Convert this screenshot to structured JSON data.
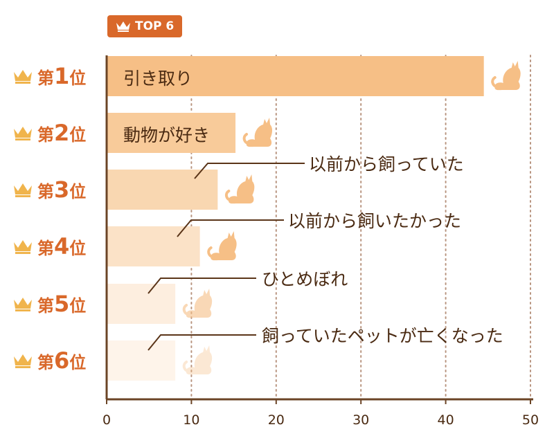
{
  "badge": {
    "label": "TOP 6",
    "color": "#d9682a",
    "icon": "crown-icon"
  },
  "chart_data": {
    "type": "bar",
    "orientation": "horizontal",
    "categories": [
      "引き取り",
      "動物が好き",
      "以前から飼っていた",
      "以前から飼いたかった",
      "ひとめぼれ",
      "飼っていたペットが亡くなった"
    ],
    "values": [
      44.5,
      15.2,
      13.1,
      11.0,
      8.1,
      8.1
    ],
    "xlim": [
      0,
      50
    ],
    "xticks": [
      0,
      10,
      20,
      30,
      40,
      50
    ],
    "grid": "vertical dotted",
    "bar_colors": [
      "#f6bf86",
      "#f8cb9a",
      "#f9d7b1",
      "#fbe2c7",
      "#fdeedf",
      "#fef4ea"
    ],
    "icon": "cat-icon"
  },
  "ranks": [
    {
      "prefix": "第",
      "number": "1",
      "suffix": "位"
    },
    {
      "prefix": "第",
      "number": "2",
      "suffix": "位"
    },
    {
      "prefix": "第",
      "number": "3",
      "suffix": "位"
    },
    {
      "prefix": "第",
      "number": "4",
      "suffix": "位"
    },
    {
      "prefix": "第",
      "number": "5",
      "suffix": "位"
    },
    {
      "prefix": "第",
      "number": "6",
      "suffix": "位"
    }
  ],
  "colors": {
    "accent": "#d9682a",
    "axis": "#6b4426",
    "grid": "#b99580",
    "crown": "#f0b44c",
    "text": "#4a2a12"
  }
}
